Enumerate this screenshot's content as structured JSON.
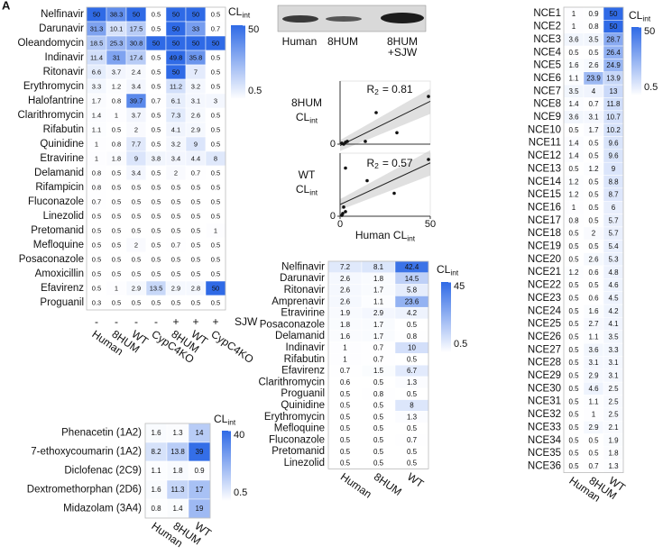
{
  "panel_label": "A",
  "chart_data": [
    {
      "type": "heatmap",
      "rows": [
        "Nelfinavir",
        "Darunavir",
        "Oleandomycin",
        "Indinavir",
        "Ritonavir",
        "Erythromycin",
        "Halofantrine",
        "Clarithromycin",
        "Rifabutin",
        "Quinidine",
        "Etravirine",
        "Delamanid",
        "Rifampicin",
        "Fluconazole",
        "Linezolid",
        "Pretomanid",
        "Mefloquine",
        "Posaconazole",
        "Amoxicillin",
        "Efavirenz",
        "Proguanil"
      ],
      "columns": [
        "Human",
        "8HUM",
        "WT",
        "CypC4KO",
        "8HUM",
        "WT",
        "CypC4KO"
      ],
      "treatment": [
        "-",
        "-",
        "-",
        "-",
        "+",
        "+",
        "+"
      ],
      "treatment_label": "SJW",
      "values": [
        [
          50,
          38.3,
          50,
          0.5,
          50,
          50,
          0.5
        ],
        [
          31.3,
          10.1,
          17.5,
          0.5,
          50,
          33,
          0.7
        ],
        [
          18.5,
          25.3,
          30.8,
          50,
          50,
          50,
          50
        ],
        [
          11.4,
          31,
          17.4,
          0.5,
          49.8,
          35.8,
          0.5
        ],
        [
          6.6,
          3.7,
          2.4,
          0.5,
          50,
          7,
          0.5
        ],
        [
          3.3,
          1.2,
          3.4,
          0.5,
          11.2,
          3.2,
          0.5
        ],
        [
          1.7,
          0.8,
          39.7,
          0.7,
          6.1,
          3.1,
          3
        ],
        [
          1.4,
          1,
          3.7,
          0.5,
          7.3,
          2.6,
          0.5
        ],
        [
          1.1,
          0.5,
          2,
          0.5,
          4.1,
          2.9,
          0.5
        ],
        [
          1,
          0.8,
          7.7,
          0.5,
          3.2,
          9,
          0.5
        ],
        [
          1,
          1.8,
          9,
          3.8,
          3.4,
          4.4,
          8
        ],
        [
          0.8,
          0.5,
          3.4,
          0.5,
          2,
          0.7,
          0.5
        ],
        [
          0.8,
          0.5,
          0.5,
          0.5,
          0.5,
          0.5,
          0.5
        ],
        [
          0.7,
          0.5,
          0.5,
          0.5,
          0.5,
          0.5,
          0.5
        ],
        [
          0.5,
          0.5,
          0.5,
          0.5,
          0.5,
          0.5,
          0.5
        ],
        [
          0.5,
          0.5,
          0.5,
          0.5,
          0.5,
          0.5,
          1
        ],
        [
          0.5,
          0.5,
          2,
          0.5,
          0.7,
          0.5,
          0.5
        ],
        [
          0.5,
          0.5,
          0.5,
          0.5,
          0.5,
          0.5,
          0.5
        ],
        [
          0.5,
          0.5,
          0.5,
          0.5,
          0.5,
          0.5,
          0.5
        ],
        [
          0.5,
          1,
          2.9,
          13.5,
          2.9,
          2.8,
          50
        ],
        [
          0.3,
          0.5,
          0.5,
          0.5,
          0.5,
          0.5,
          0.5
        ]
      ],
      "colorbar_title": {
        "main": "CL",
        "sub": "int"
      },
      "clim": [
        0.5,
        50
      ],
      "cticks": [
        0.5,
        50
      ],
      "colormap": [
        "#ffffff",
        "#2f6ae6"
      ]
    },
    {
      "type": "blot",
      "labels": [
        [
          "Human"
        ],
        [
          "8HUM"
        ],
        [
          "8HUM",
          "+SJW"
        ]
      ]
    },
    {
      "type": "scatter",
      "ylabel": {
        "line": "8HUM",
        "main": "CL",
        "sub": "int"
      },
      "annotation": {
        "main": "R",
        "sub": "2",
        "text": "= 0.81"
      },
      "x": [
        49,
        20,
        31.5,
        14,
        3,
        2,
        4,
        1
      ],
      "y": [
        41.6,
        27.5,
        10,
        2.4,
        1.6,
        0,
        2.4,
        0.8
      ],
      "xlim": [
        0,
        50
      ],
      "ylim": [
        0,
        55
      ],
      "yticks": [
        0
      ]
    },
    {
      "type": "scatter",
      "ylabel": {
        "line": "WT",
        "main": "CL",
        "sub": "int"
      },
      "annotation": {
        "main": "R",
        "sub": "2",
        "text": "= 0.57"
      },
      "x": [
        49,
        3,
        15,
        30,
        2,
        3,
        1.5,
        1
      ],
      "y": [
        49.5,
        42,
        31,
        20,
        8,
        4,
        2.4,
        0.8
      ],
      "xlim": [
        0,
        50
      ],
      "ylim": [
        0,
        55
      ],
      "yticks": [
        0
      ],
      "xticks": [
        0,
        50
      ],
      "xlabel": {
        "main": "Human CL",
        "sub": "int"
      }
    },
    {
      "type": "heatmap",
      "rows": [
        "Phenacetin (1A2)",
        "7-ethoxycoumarin (1A2)",
        "Diclofenac (2C9)",
        "Dextromethorphan (2D6)",
        "Midazolam (3A4)"
      ],
      "columns": [
        "Human",
        "8HUM",
        "WT"
      ],
      "values": [
        [
          1.6,
          1.3,
          14
        ],
        [
          8.2,
          13.8,
          39
        ],
        [
          1.1,
          1.8,
          0.9
        ],
        [
          1.6,
          11.3,
          17
        ],
        [
          0.8,
          1.4,
          19
        ]
      ],
      "colorbar_title": {
        "main": "CL",
        "sub": "int"
      },
      "clim": [
        0.5,
        40
      ],
      "cticks": [
        0.5,
        40
      ],
      "colormap": [
        "#ffffff",
        "#2f6ae6"
      ]
    },
    {
      "type": "heatmap",
      "rows": [
        "Nelfinavir",
        "Darunavir",
        "Ritonavir",
        "Amprenavir",
        "Etravirine",
        "Posaconazole",
        "Delamanid",
        "Indinavir",
        "Rifabutin",
        "Efavirenz",
        "Clarithromycin",
        "Proguanil",
        "Quinidine",
        "Erythromycin",
        "Mefloquine",
        "Fluconazole",
        "Pretomanid",
        "Linezolid"
      ],
      "columns": [
        "Human",
        "8HUM",
        "WT"
      ],
      "values": [
        [
          7.2,
          8.1,
          42.4
        ],
        [
          2.6,
          1.8,
          14.5
        ],
        [
          2.6,
          1.7,
          5.8
        ],
        [
          2.6,
          1.1,
          23.6
        ],
        [
          1.9,
          2.9,
          4.2
        ],
        [
          1.8,
          1.7,
          0.5
        ],
        [
          1.6,
          1.7,
          0.8
        ],
        [
          1,
          0.7,
          10
        ],
        [
          1,
          0.7,
          0.5
        ],
        [
          0.7,
          1.5,
          6.7
        ],
        [
          0.6,
          0.5,
          1.3
        ],
        [
          0.5,
          0.8,
          0.5
        ],
        [
          0.5,
          0.5,
          8
        ],
        [
          0.5,
          0.5,
          1.3
        ],
        [
          0.5,
          0.5,
          0.5
        ],
        [
          0.5,
          0.5,
          0.7
        ],
        [
          0.5,
          0.5,
          0.5
        ],
        [
          0.5,
          0.5,
          0.5
        ]
      ],
      "colorbar_title": {
        "main": "CL",
        "sub": "int"
      },
      "clim": [
        0.5,
        45
      ],
      "cticks": [
        0.5,
        45
      ],
      "colormap": [
        "#ffffff",
        "#2f6ae6"
      ]
    },
    {
      "type": "heatmap",
      "rows": [
        "NCE1",
        "NCE2",
        "NCE3",
        "NCE4",
        "NCE5",
        "NCE6",
        "NCE7",
        "NCE8",
        "NCE9",
        "NCE10",
        "NCE11",
        "NCE12",
        "NCE13",
        "NCE14",
        "NCE15",
        "NCE16",
        "NCE17",
        "NCE18",
        "NCE19",
        "NCE20",
        "NCE21",
        "NCE22",
        "NCE23",
        "NCE24",
        "NCE25",
        "NCE26",
        "NCE27",
        "NCE28",
        "NCE29",
        "NCE30",
        "NCE31",
        "NCE32",
        "NCE33",
        "NCE34",
        "NCE35",
        "NCE36"
      ],
      "columns": [
        "Human",
        "8HUM",
        "WT"
      ],
      "values": [
        [
          1,
          0.9,
          50
        ],
        [
          1,
          0.8,
          50
        ],
        [
          3.6,
          3.5,
          28.7
        ],
        [
          0.5,
          0.5,
          26.4
        ],
        [
          1.6,
          2.6,
          24.9
        ],
        [
          1.1,
          23.9,
          13.9
        ],
        [
          3.5,
          4,
          13
        ],
        [
          1.4,
          0.7,
          11.8
        ],
        [
          3.6,
          3.1,
          10.7
        ],
        [
          0.5,
          1.7,
          10.2
        ],
        [
          1.4,
          0.5,
          9.6
        ],
        [
          1.4,
          0.5,
          9.6
        ],
        [
          0.5,
          1.2,
          9
        ],
        [
          1.2,
          0.5,
          8.8
        ],
        [
          1.2,
          0.5,
          8.7
        ],
        [
          1,
          0.5,
          6
        ],
        [
          0.8,
          0.5,
          5.7
        ],
        [
          0.5,
          2,
          5.7
        ],
        [
          0.5,
          0.5,
          5.4
        ],
        [
          0.5,
          2.6,
          5.3
        ],
        [
          1.2,
          0.6,
          4.8
        ],
        [
          0.5,
          0.5,
          4.6
        ],
        [
          0.5,
          0.6,
          4.5
        ],
        [
          0.5,
          1.6,
          4.2
        ],
        [
          0.5,
          2.7,
          4.1
        ],
        [
          0.5,
          1.1,
          3.5
        ],
        [
          0.5,
          3.6,
          3.3
        ],
        [
          0.5,
          3.1,
          3.1
        ],
        [
          0.5,
          2.9,
          3.1
        ],
        [
          0.5,
          4.6,
          2.5
        ],
        [
          0.5,
          1.1,
          2.5
        ],
        [
          0.5,
          1,
          2.5
        ],
        [
          0.5,
          2.9,
          2.1
        ],
        [
          0.5,
          0.5,
          1.9
        ],
        [
          0.5,
          0.5,
          1.8
        ],
        [
          0.5,
          0.7,
          1.3
        ]
      ],
      "colorbar_title": {
        "main": "CL",
        "sub": "int"
      },
      "clim": [
        0.5,
        50
      ],
      "cticks": [
        0.5,
        50
      ],
      "colormap": [
        "#ffffff",
        "#2f6ae6"
      ]
    }
  ]
}
